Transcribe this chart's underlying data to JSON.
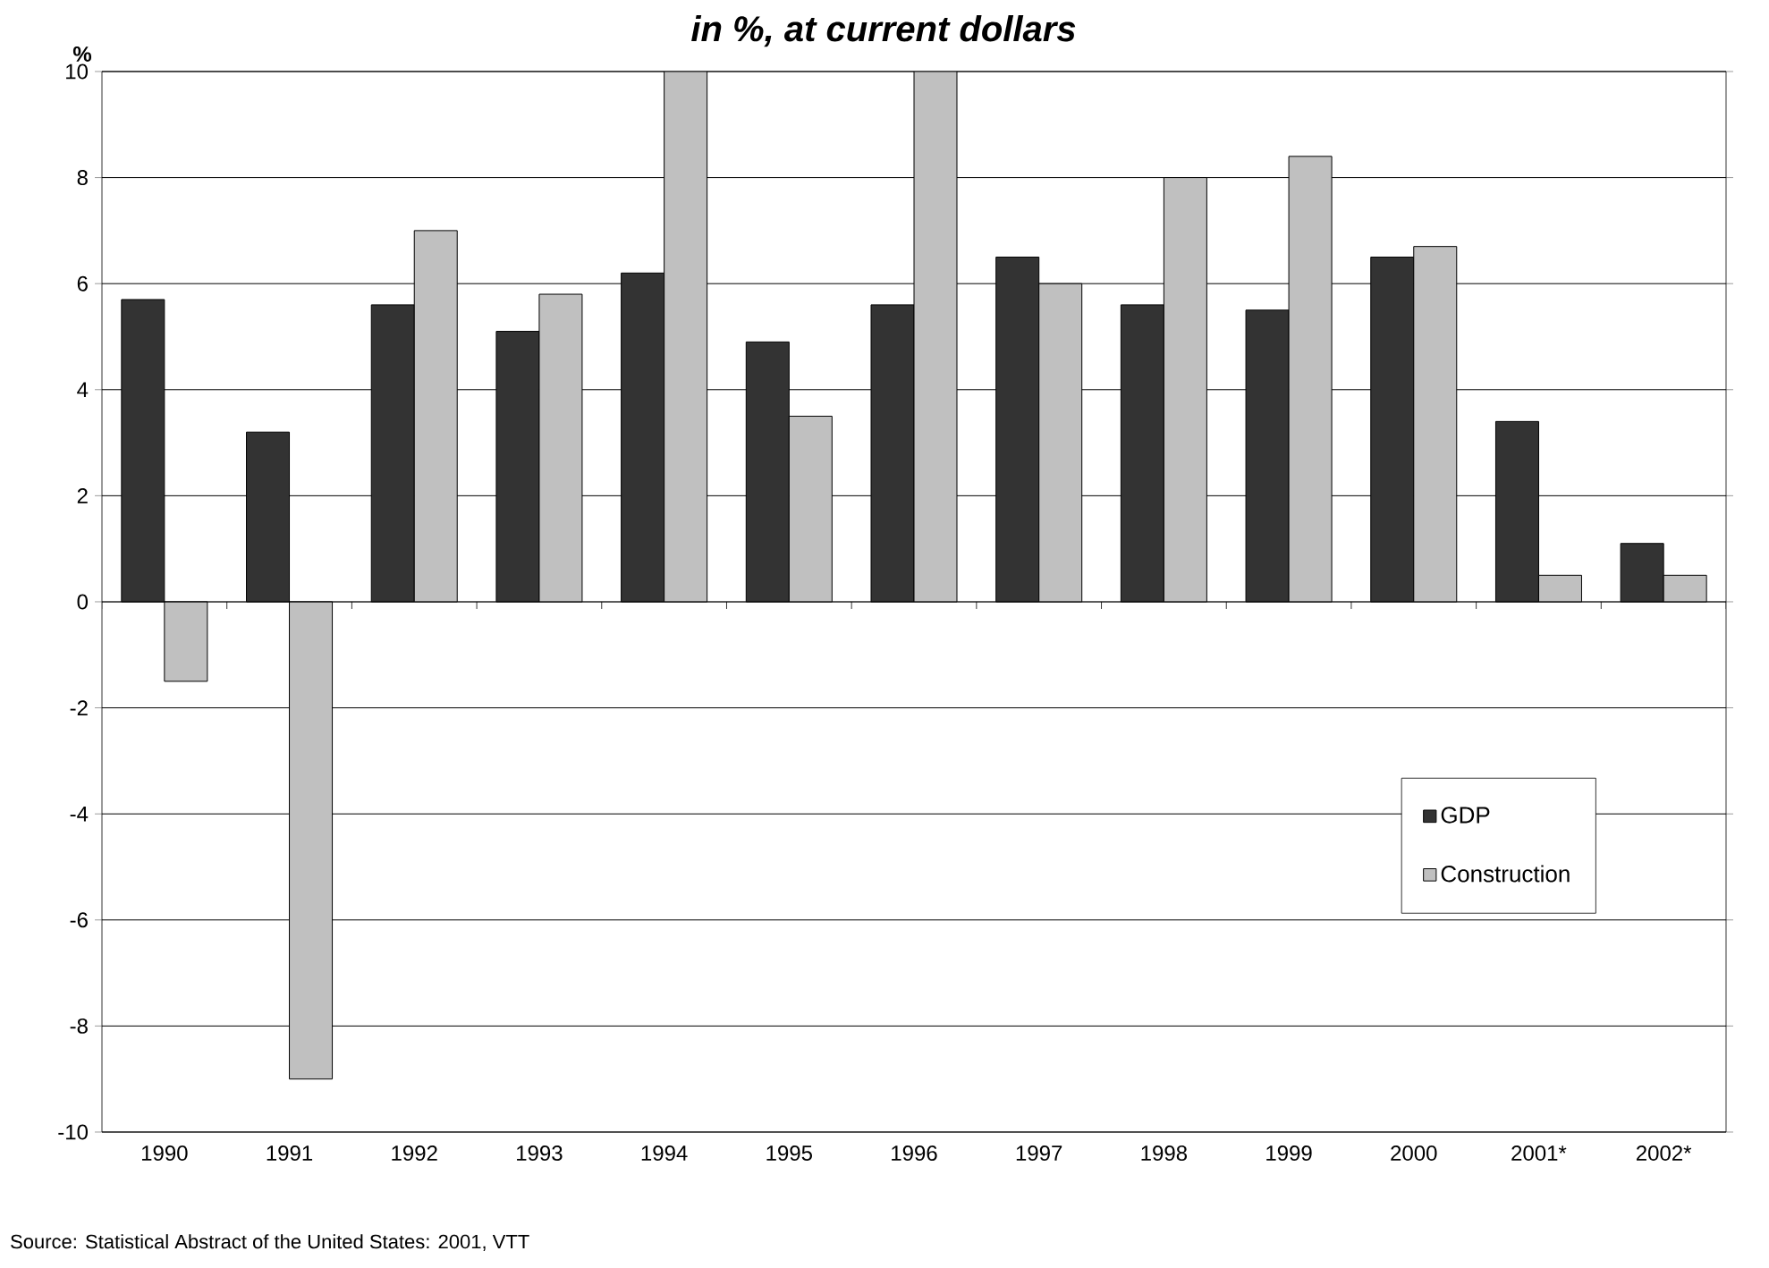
{
  "chart_data": {
    "type": "bar",
    "title": "in %, at current dollars",
    "ylabel": "%",
    "categories": [
      "1990",
      "1991",
      "1992",
      "1993",
      "1994",
      "1995",
      "1996",
      "1997",
      "1998",
      "1999",
      "2000",
      "2001*",
      "2002*"
    ],
    "series": [
      {
        "name": "GDP",
        "color": "#333333",
        "values": [
          5.7,
          3.2,
          5.6,
          5.1,
          6.2,
          4.9,
          5.6,
          6.5,
          5.6,
          5.5,
          6.5,
          3.4,
          1.1
        ]
      },
      {
        "name": "Construction",
        "color": "#c0c0c0",
        "values": [
          -1.5,
          -9.0,
          7.0,
          5.8,
          10.0,
          3.5,
          10.0,
          6.0,
          8.0,
          8.4,
          6.7,
          0.5,
          0.5
        ]
      }
    ],
    "ylim": [
      -10,
      10
    ],
    "yticks": [
      -10,
      -8,
      -6,
      -4,
      -2,
      0,
      2,
      4,
      6,
      8,
      10
    ],
    "grid": "y",
    "legend": "right",
    "annotations": [
      "Source: Statistical Abstract of the United States: 2001, VTT"
    ]
  }
}
